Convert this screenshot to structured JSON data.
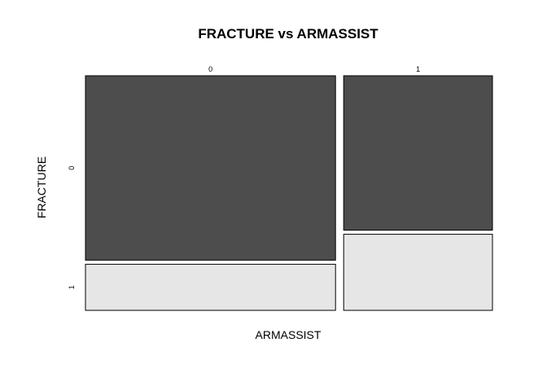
{
  "chart_data": {
    "type": "mosaic",
    "title": "FRACTURE vs ARMASSIST",
    "xlabel": "ARMASSIST",
    "ylabel": "FRACTURE",
    "x_categories": [
      "0",
      "1"
    ],
    "y_categories": [
      "0",
      "1"
    ],
    "x_proportions": [
      0.627,
      0.373
    ],
    "conditional_y_proportions": [
      [
        0.8,
        0.2
      ],
      [
        0.67,
        0.33
      ]
    ],
    "colors": {
      "0": "#4d4d4d",
      "1": "#e6e6e6"
    },
    "border_color": "#000000"
  }
}
